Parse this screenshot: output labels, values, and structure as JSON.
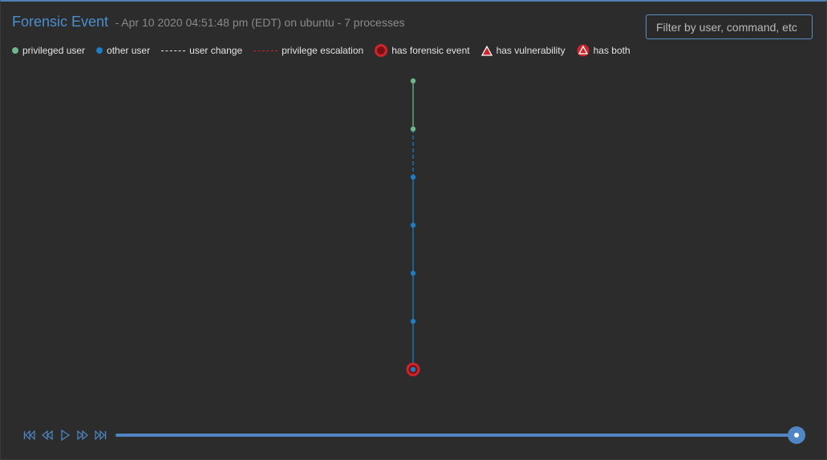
{
  "header": {
    "title": "Forensic Event",
    "subtitle": "- Apr 10 2020 04:51:48 pm (EDT) on ubuntu - 7 processes"
  },
  "filter": {
    "placeholder": "Filter by user, command, etc"
  },
  "legend": {
    "privileged_user": "privileged user",
    "other_user": "other user",
    "user_change": "user change",
    "privilege_escalation": "privilege escalation",
    "forensic_event": "has forensic event",
    "vulnerability": "has vulnerability",
    "both": "has both"
  },
  "colors": {
    "privileged": "#6fb68a",
    "other": "#1e7cc0",
    "user_change": "#e8e8e8",
    "escalation": "#d0242c",
    "accent": "#4a8fce"
  },
  "process_tree": [
    {
      "id": 1,
      "user_type": "privileged",
      "forensic_event": false
    },
    {
      "id": 2,
      "user_type": "privileged",
      "forensic_event": false
    },
    {
      "id": 3,
      "user_type": "other",
      "forensic_event": false
    },
    {
      "id": 4,
      "user_type": "other",
      "forensic_event": false
    },
    {
      "id": 5,
      "user_type": "other",
      "forensic_event": false
    },
    {
      "id": 6,
      "user_type": "other",
      "forensic_event": false
    },
    {
      "id": 7,
      "user_type": "other",
      "forensic_event": true
    }
  ],
  "playback": {
    "icons": [
      "skip-to-start-icon",
      "rewind-icon",
      "play-icon",
      "fast-forward-icon",
      "skip-to-end-icon"
    ],
    "progress": 1.0
  }
}
